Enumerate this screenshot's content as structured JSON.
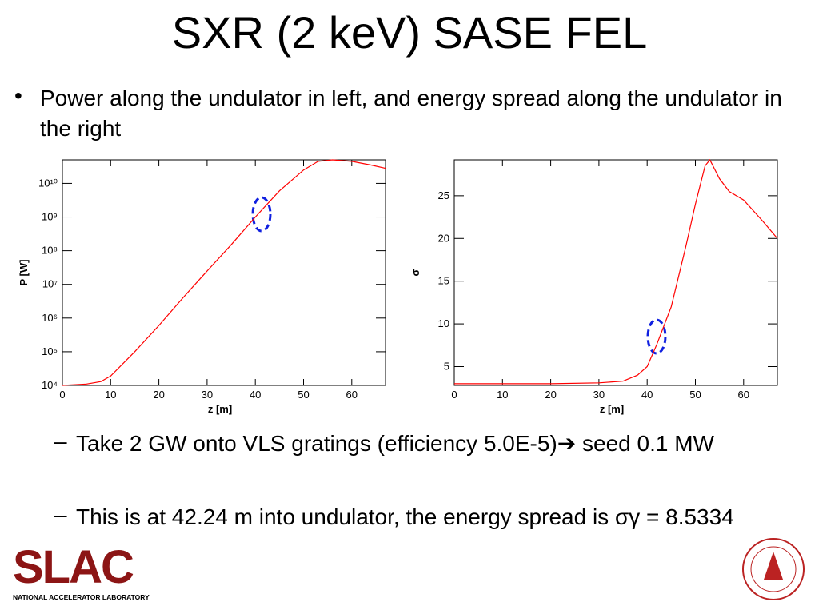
{
  "title": "SXR (2 keV) SASE FEL",
  "bullets": [
    "Power along the undulator in left, and energy spread along the undulator in the right"
  ],
  "sub_bullets": [
    "Take 2 GW onto VLS gratings (efficiency 5.0E-5)➔ seed 0.1 MW",
    "This is at 42.24 m into undulator, the energy spread is σγ = 8.5334"
  ],
  "logo": {
    "name": "SLAC",
    "subtitle": "NATIONAL ACCELERATOR LABORATORY"
  },
  "chart_data": [
    {
      "type": "line",
      "xlabel": "z [m]",
      "ylabel": "P [W]",
      "log_y": true,
      "x": [
        0,
        5,
        8,
        10,
        15,
        20,
        25,
        30,
        35,
        40,
        45,
        50,
        53,
        56,
        60,
        64,
        67
      ],
      "values": [
        10000,
        11000,
        13000,
        19000,
        100000,
        600000,
        4000000,
        25000000,
        150000000,
        1000000000,
        6000000000,
        25000000000,
        45000000000,
        50000000000,
        45000000000,
        35000000000,
        28000000000
      ],
      "color": "#ff0000",
      "xlim": [
        0,
        67
      ],
      "xticks": [
        0,
        10,
        20,
        30,
        40,
        50,
        60
      ],
      "ylim": [
        10000,
        50000000000
      ],
      "yticks": [
        {
          "value": 10000,
          "label": "10⁴"
        },
        {
          "value": 100000,
          "label": "10⁵"
        },
        {
          "value": 1000000,
          "label": "10⁶"
        },
        {
          "value": 10000000,
          "label": "10⁷"
        },
        {
          "value": 100000000,
          "label": "10⁸"
        },
        {
          "value": 1000000000,
          "label": "10⁹"
        },
        {
          "value": 10000000000,
          "label": "10¹⁰"
        }
      ]
    },
    {
      "type": "line",
      "xlabel": "z [m]",
      "ylabel": "σ",
      "log_y": false,
      "x": [
        0,
        10,
        20,
        30,
        35,
        38,
        40,
        42,
        45,
        48,
        50,
        52,
        53,
        55,
        57,
        60,
        64,
        67
      ],
      "values": [
        3,
        3,
        3,
        3.1,
        3.3,
        4,
        5,
        7.6,
        12,
        19,
        24,
        28.5,
        29.2,
        27,
        25.5,
        24.5,
        22,
        20
      ],
      "color": "#ff0000",
      "xlim": [
        0,
        67
      ],
      "xticks": [
        0,
        10,
        20,
        30,
        40,
        50,
        60
      ],
      "ylim": [
        2.8,
        29.2
      ],
      "yticks": [
        5,
        10,
        15,
        20,
        25
      ]
    }
  ]
}
